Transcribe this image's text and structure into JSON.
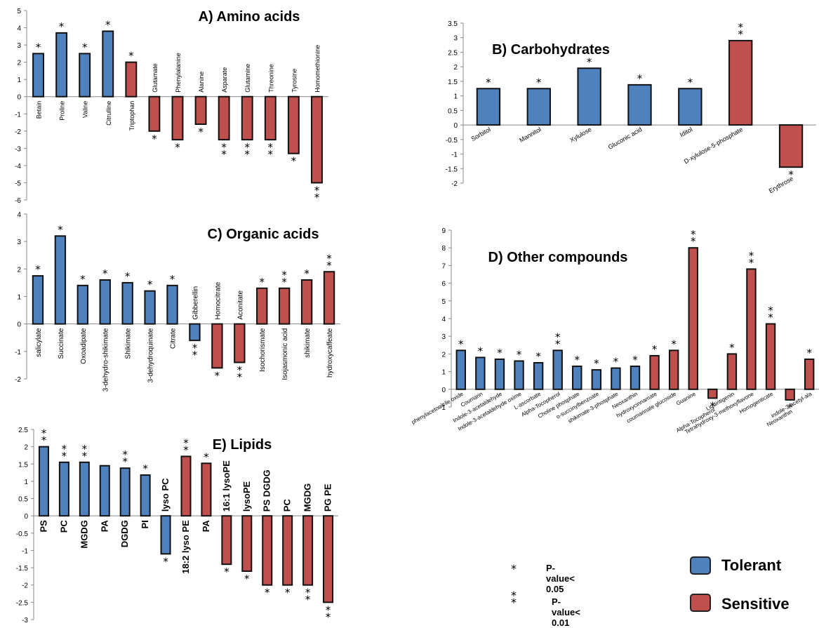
{
  "colors": {
    "tolerant": "#4f81bd",
    "sensitive": "#c0504d",
    "edge": "#111111"
  },
  "legend": {
    "sig1_symbol": "*",
    "sig1_label": "P-value< 0.05",
    "sig2_symbol": "**",
    "sig2_label": "P-value< 0.01",
    "tolerant_label": "Tolerant",
    "sensitive_label": "Sensitive"
  },
  "chart_data": [
    {
      "id": "A",
      "type": "bar",
      "title": "A) Amino acids",
      "ylim": [
        -6,
        5
      ],
      "yticks": [
        5,
        4,
        3,
        2,
        1,
        0,
        -1,
        -2,
        -3,
        -4,
        -5,
        -6
      ],
      "categories": [
        "Betain",
        "Proline",
        "Valine",
        "Citrulline",
        "Triptophan",
        "Glutamate",
        "Phenylalanine",
        "Alanine",
        "Asparate",
        "Glutamine",
        "Threonine",
        "Tyrosine",
        "Homomethionine"
      ],
      "values": [
        2.5,
        3.7,
        2.5,
        3.8,
        2.0,
        -2.0,
        -2.5,
        -1.6,
        -2.5,
        -2.5,
        -2.5,
        -3.3,
        -5.0
      ],
      "groups": [
        "tolerant",
        "tolerant",
        "tolerant",
        "tolerant",
        "sensitive",
        "sensitive",
        "sensitive",
        "sensitive",
        "sensitive",
        "sensitive",
        "sensitive",
        "sensitive",
        "sensitive"
      ],
      "significance": [
        1,
        1,
        1,
        1,
        1,
        1,
        1,
        1,
        2,
        2,
        2,
        1,
        2
      ]
    },
    {
      "id": "B",
      "type": "bar",
      "title": "B) Carbohydrates",
      "ylim": [
        -2,
        3.5
      ],
      "yticks": [
        3.5,
        3,
        2.5,
        2,
        1.5,
        1,
        0.5,
        0,
        -0.5,
        -1,
        -1.5,
        -2
      ],
      "categories": [
        "Sorbitol",
        "Mannitol",
        "Xylulose",
        "Gluconic acid",
        "Iditol",
        "D-xylulose-5-phosphate",
        "Erythrose"
      ],
      "values": [
        1.25,
        1.25,
        1.95,
        1.38,
        1.25,
        2.9,
        -1.45
      ],
      "groups": [
        "tolerant",
        "tolerant",
        "tolerant",
        "tolerant",
        "tolerant",
        "sensitive",
        "sensitive"
      ],
      "significance": [
        1,
        1,
        1,
        1,
        1,
        2,
        1
      ]
    },
    {
      "id": "C",
      "type": "bar",
      "title": "C) Organic acids",
      "ylim": [
        -2,
        4
      ],
      "yticks": [
        4,
        3,
        2,
        1,
        0,
        -1,
        -2
      ],
      "categories": [
        "salicylate",
        "Succinate",
        "Oxoadipate",
        "3-dehydro-shikimate",
        "Shikimate",
        "3-dehydroquinate",
        "Citrate",
        "Gibberellin",
        "Homocitrate",
        "Aconitate",
        "Isochorismate",
        "Isojasmonic acid",
        "shikimate",
        "hydroxycaffeate"
      ],
      "values": [
        1.75,
        3.2,
        1.4,
        1.6,
        1.5,
        1.2,
        1.4,
        -0.6,
        -1.6,
        -1.4,
        1.3,
        1.3,
        1.6,
        1.9
      ],
      "groups": [
        "tolerant",
        "tolerant",
        "tolerant",
        "tolerant",
        "tolerant",
        "tolerant",
        "tolerant",
        "tolerant",
        "sensitive",
        "sensitive",
        "sensitive",
        "sensitive",
        "sensitive",
        "sensitive"
      ],
      "significance": [
        1,
        1,
        1,
        1,
        1,
        1,
        1,
        2,
        1,
        2,
        1,
        2,
        1,
        2
      ]
    },
    {
      "id": "D",
      "type": "bar",
      "title": "D) Other compounds",
      "ylim": [
        -1,
        9
      ],
      "yticks": [
        9,
        8,
        7,
        6,
        5,
        4,
        3,
        2,
        1,
        0,
        -1
      ],
      "categories": [
        "phenylacetonitrile oxide",
        "Coumarin",
        "Indole-3-acetaldehyde",
        "Indole-3-acetaldehyde oxime",
        "L-ascorbate",
        "Alpha-Tocopherol",
        "Choline phosphate",
        "o-succinylbenzoate",
        "shikimate-3-phosphate",
        "Neoxanthin",
        "hydroxycinnamate",
        "coumarinate glucoside",
        "Guanine",
        "Alpha-Tocopherol",
        "Liquiritigenin",
        "Tetrahydroxy-3-methoxyflavone",
        "Homogenticate",
        "Neoxanthin",
        "indole-3-acetyl-ala"
      ],
      "values": [
        2.2,
        1.8,
        1.7,
        1.6,
        1.5,
        2.2,
        1.3,
        1.1,
        1.2,
        1.3,
        1.9,
        2.2,
        8.0,
        -0.5,
        2.0,
        6.8,
        3.7,
        -0.6,
        1.7
      ],
      "groups": [
        "tolerant",
        "tolerant",
        "tolerant",
        "tolerant",
        "tolerant",
        "tolerant",
        "tolerant",
        "tolerant",
        "tolerant",
        "tolerant",
        "sensitive",
        "sensitive",
        "sensitive",
        "sensitive",
        "sensitive",
        "sensitive",
        "sensitive",
        "sensitive",
        "sensitive"
      ],
      "significance": [
        1,
        1,
        1,
        1,
        1,
        2,
        1,
        1,
        1,
        1,
        1,
        1,
        2,
        1,
        1,
        2,
        2,
        1,
        1
      ]
    },
    {
      "id": "E",
      "type": "bar",
      "title": "E) Lipids",
      "ylim": [
        -3,
        2.5
      ],
      "yticks": [
        2.5,
        2,
        1.5,
        1,
        0.5,
        0,
        -0.5,
        -1,
        -1.5,
        -2,
        -2.5,
        -3
      ],
      "categories": [
        "PS",
        "PC",
        "MGDG",
        "PA",
        "DGDG",
        "PI",
        "lyso PC",
        "18:2 lyso PE",
        "PA",
        "16:1 lysoPE",
        "lysoPE",
        "PS DGDG",
        "PC",
        "MGDG",
        "PG PE"
      ],
      "values": [
        2.0,
        1.55,
        1.55,
        1.45,
        1.38,
        1.18,
        -1.1,
        1.72,
        1.52,
        -1.4,
        -1.6,
        -2.0,
        -2.0,
        -2.0,
        -2.5
      ],
      "groups": [
        "tolerant",
        "tolerant",
        "tolerant",
        "tolerant",
        "tolerant",
        "tolerant",
        "tolerant",
        "sensitive",
        "sensitive",
        "sensitive",
        "sensitive",
        "sensitive",
        "sensitive",
        "sensitive",
        "sensitive"
      ],
      "significance": [
        2,
        2,
        2,
        0,
        2,
        1,
        1,
        2,
        1,
        1,
        1,
        1,
        1,
        2,
        2
      ]
    }
  ]
}
